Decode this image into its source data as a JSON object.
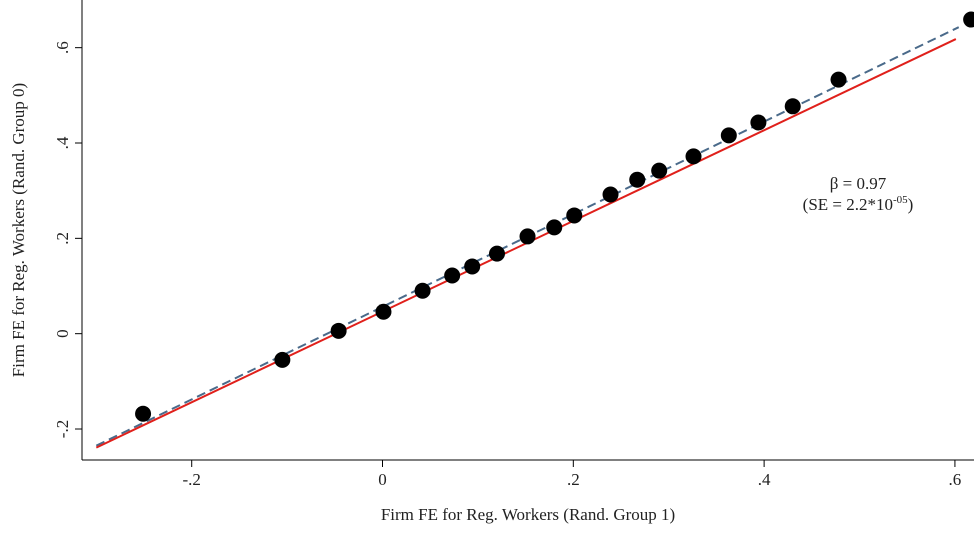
{
  "chart_data": {
    "type": "scatter",
    "xlabel": "Firm FE for Reg. Workers (Rand. Group 1)",
    "ylabel": "Firm FE for Reg. Workers (Rand. Group 0)",
    "xlim": [
      -0.315,
      0.62
    ],
    "ylim": [
      -0.265,
      0.7
    ],
    "xticks": [
      {
        "value": -0.2,
        "label": "-.2"
      },
      0,
      {
        "value": 0.2,
        "label": ".2"
      },
      {
        "value": 0.4,
        "label": ".4"
      },
      {
        "value": 0.6,
        "label": ".6"
      }
    ],
    "yticks": [
      {
        "value": -0.2,
        "label": "-.2"
      },
      0,
      {
        "value": 0.2,
        "label": ".2"
      },
      {
        "value": 0.4,
        "label": ".4"
      },
      {
        "value": 0.6,
        "label": ".6"
      }
    ],
    "points": {
      "color": "#000000",
      "x": [
        -0.251,
        -0.105,
        -0.046,
        0.001,
        0.042,
        0.073,
        0.094,
        0.12,
        0.152,
        0.18,
        0.201,
        0.239,
        0.267,
        0.29,
        0.326,
        0.363,
        0.394,
        0.43,
        0.478,
        0.617
      ],
      "y": [
        -0.168,
        -0.055,
        0.006,
        0.046,
        0.09,
        0.122,
        0.141,
        0.168,
        0.204,
        0.223,
        0.248,
        0.292,
        0.323,
        0.342,
        0.372,
        0.416,
        0.443,
        0.477,
        0.533,
        0.659
      ]
    },
    "lines": [
      {
        "color": "#4a6a8a",
        "dashed": true,
        "x": [
          -0.3,
          0.604
        ],
        "y": [
          -0.235,
          0.643
        ]
      },
      {
        "color": "#e0201b",
        "dashed": false,
        "x": [
          -0.3,
          0.601
        ],
        "y": [
          -0.239,
          0.618
        ]
      }
    ],
    "annotation": {
      "beta": "β = 0.97",
      "se": "(SE = 2.2*10",
      "exponent": "-05",
      "close": ")"
    }
  }
}
